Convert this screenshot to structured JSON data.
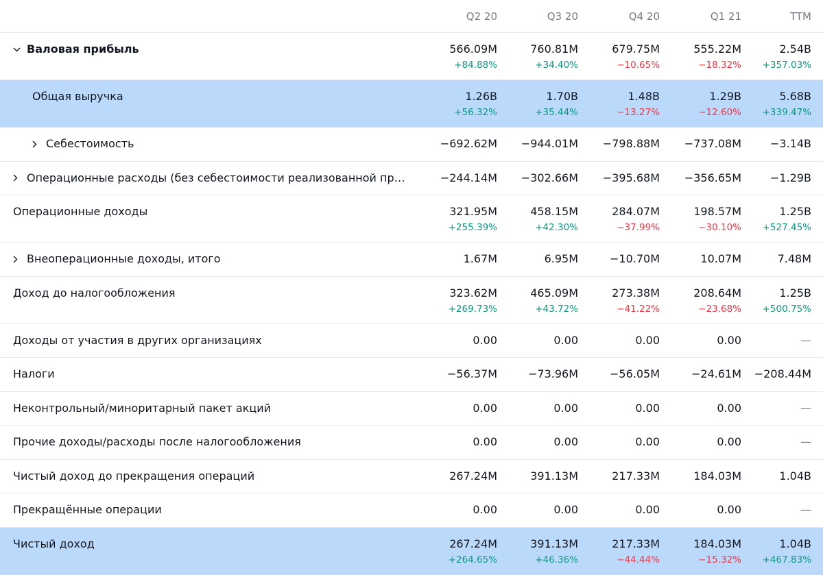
{
  "header": {
    "periods": [
      "Q2 20",
      "Q3 20",
      "Q4 20",
      "Q1 21",
      "TTM"
    ]
  },
  "rows": [
    {
      "label": "Валовая прибыль",
      "values": [
        "566.09M",
        "760.81M",
        "679.75M",
        "555.22M",
        "2.54B"
      ],
      "changes": [
        "+84.88%",
        "+34.40%",
        "−10.65%",
        "−18.32%",
        "+357.03%"
      ]
    },
    {
      "label": "Общая выручка",
      "values": [
        "1.26B",
        "1.70B",
        "1.48B",
        "1.29B",
        "5.68B"
      ],
      "changes": [
        "+56.32%",
        "+35.44%",
        "−13.27%",
        "−12.60%",
        "+339.47%"
      ]
    },
    {
      "label": "Себестоимость",
      "values": [
        "−692.62M",
        "−944.01M",
        "−798.88M",
        "−737.08M",
        "−3.14B"
      ]
    },
    {
      "label": "Операционные расходы (без себестоимости реализованной проду…",
      "values": [
        "−244.14M",
        "−302.66M",
        "−395.68M",
        "−356.65M",
        "−1.29B"
      ]
    },
    {
      "label": "Операционные доходы",
      "values": [
        "321.95M",
        "458.15M",
        "284.07M",
        "198.57M",
        "1.25B"
      ],
      "changes": [
        "+255.39%",
        "+42.30%",
        "−37.99%",
        "−30.10%",
        "+527.45%"
      ]
    },
    {
      "label": "Внеоперационные доходы, итого",
      "values": [
        "1.67M",
        "6.95M",
        "−10.70M",
        "10.07M",
        "7.48M"
      ]
    },
    {
      "label": "Доход до налогообложения",
      "values": [
        "323.62M",
        "465.09M",
        "273.38M",
        "208.64M",
        "1.25B"
      ],
      "changes": [
        "+269.73%",
        "+43.72%",
        "−41.22%",
        "−23.68%",
        "+500.75%"
      ]
    },
    {
      "label": "Доходы от участия в других организациях",
      "values": [
        "0.00",
        "0.00",
        "0.00",
        "0.00",
        "—"
      ]
    },
    {
      "label": "Налоги",
      "values": [
        "−56.37M",
        "−73.96M",
        "−56.05M",
        "−24.61M",
        "−208.44M"
      ]
    },
    {
      "label": "Неконтрольный/миноритарный пакет акций",
      "values": [
        "0.00",
        "0.00",
        "0.00",
        "0.00",
        "—"
      ]
    },
    {
      "label": "Прочие доходы/расходы после налогообложения",
      "values": [
        "0.00",
        "0.00",
        "0.00",
        "0.00",
        "—"
      ]
    },
    {
      "label": "Чистый доход до прекращения операций",
      "values": [
        "267.24M",
        "391.13M",
        "217.33M",
        "184.03M",
        "1.04B"
      ]
    },
    {
      "label": "Прекращённые операции",
      "values": [
        "0.00",
        "0.00",
        "0.00",
        "0.00",
        "—"
      ]
    },
    {
      "label": "Чистый доход",
      "values": [
        "267.24M",
        "391.13M",
        "217.33M",
        "184.03M",
        "1.04B"
      ],
      "changes": [
        "+264.65%",
        "+46.36%",
        "−44.44%",
        "−15.32%",
        "+467.83%"
      ]
    }
  ],
  "colors": {
    "highlight": "#bbd9fb",
    "positive": "#089981",
    "negative": "#f23645",
    "muted": "#787b86",
    "divider": "#e6e8ee"
  },
  "icons": {
    "expanded": "chevron-down-icon",
    "collapsed": "chevron-right-icon"
  }
}
